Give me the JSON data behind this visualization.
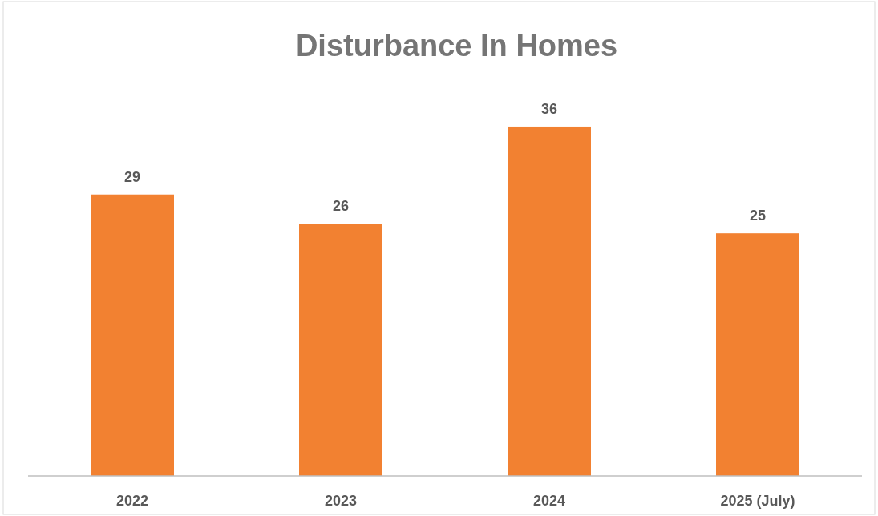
{
  "chart_data": {
    "type": "bar",
    "title": "Disturbance In Homes",
    "categories": [
      "2022",
      "2023",
      "2024",
      "2025 (July)"
    ],
    "values": [
      29,
      26,
      36,
      25
    ],
    "color": "#f28131",
    "data_labels": true,
    "tick_labels": "x"
  }
}
